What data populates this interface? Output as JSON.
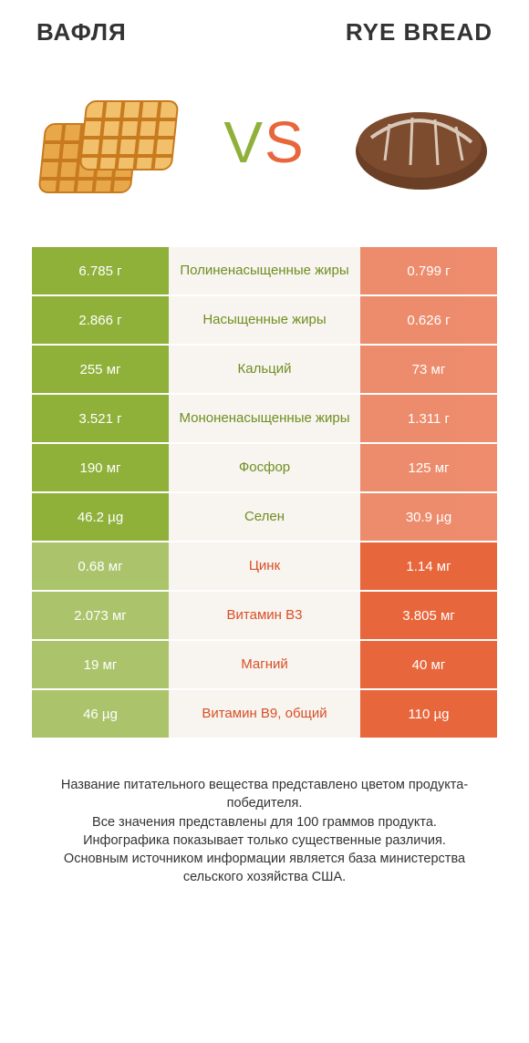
{
  "header": {
    "left_title": "ВАФЛЯ",
    "right_title": "RYE BREAD"
  },
  "vs": {
    "v": "V",
    "s": "S"
  },
  "colors": {
    "green": "#8fb13a",
    "orange": "#e8663c",
    "green_text": "#6f8f22",
    "orange_text": "#d85027",
    "mid_bg": "#f8f4ef",
    "white": "#ffffff",
    "waffle_fill": "#e8a84a",
    "waffle_grid": "#c77a1e",
    "bread_fill": "#6b3f25",
    "bread_highlight": "#d9c8b8"
  },
  "table": {
    "rows": [
      {
        "left": "6.785 г",
        "label": "Полиненасыщенные жиры",
        "right": "0.799 г",
        "winner": "left"
      },
      {
        "left": "2.866 г",
        "label": "Насыщенные жиры",
        "right": "0.626 г",
        "winner": "left"
      },
      {
        "left": "255 мг",
        "label": "Кальций",
        "right": "73 мг",
        "winner": "left"
      },
      {
        "left": "3.521 г",
        "label": "Мононенасыщенные жиры",
        "right": "1.311 г",
        "winner": "left"
      },
      {
        "left": "190 мг",
        "label": "Фосфор",
        "right": "125 мг",
        "winner": "left"
      },
      {
        "left": "46.2 µg",
        "label": "Селен",
        "right": "30.9 µg",
        "winner": "left"
      },
      {
        "left": "0.68 мг",
        "label": "Цинк",
        "right": "1.14 мг",
        "winner": "right"
      },
      {
        "left": "2.073 мг",
        "label": "Витамин B3",
        "right": "3.805 мг",
        "winner": "right"
      },
      {
        "left": "19 мг",
        "label": "Магний",
        "right": "40 мг",
        "winner": "right"
      },
      {
        "left": "46 µg",
        "label": "Витамин B9, общий",
        "right": "110 µg",
        "winner": "right"
      }
    ]
  },
  "footer": {
    "line1": "Название питательного вещества представлено цветом продукта-победителя.",
    "line2": "Все значения представлены для 100 граммов продукта.",
    "line3": "Инфографика показывает только существенные различия.",
    "line4": "Основным источником информации является база министерства сельского хозяйства США."
  }
}
